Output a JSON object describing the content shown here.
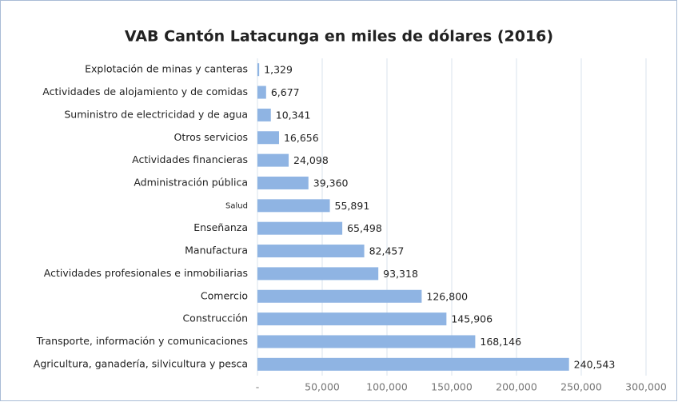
{
  "chart_data": {
    "type": "bar",
    "orientation": "horizontal",
    "title": "VAB Cantón Latacunga en miles de dólares (2016)",
    "categories": [
      "Explotación de minas y canteras",
      "Actividades de alojamiento y de comidas",
      "Suministro de electricidad y de agua",
      "Otros servicios",
      "Actividades financieras",
      "Administración pública",
      "Salud",
      "Enseñanza",
      "Manufactura",
      "Actividades profesionales e inmobiliarias",
      "Comercio",
      "Construcción",
      "Transporte, información y comunicaciones",
      "Agricultura, ganadería, silvicultura y pesca"
    ],
    "values": [
      1329,
      6677,
      10341,
      16656,
      24098,
      39360,
      55891,
      65498,
      82457,
      93318,
      126800,
      145906,
      168146,
      240543
    ],
    "value_labels": [
      "1,329",
      "6,677",
      "10,341",
      "16,656",
      "24,098",
      "39,360",
      "55,891",
      "65,498",
      "82,457",
      "93,318",
      "126,800",
      "145,906",
      "168,146",
      "240,543"
    ],
    "color": "#8fb4e3",
    "xlim": [
      0,
      300000
    ],
    "xticks": [
      {
        "value": 0,
        "label": "-"
      },
      {
        "value": 50000,
        "label": "50,000"
      },
      {
        "value": 100000,
        "label": "100,000"
      },
      {
        "value": 150000,
        "label": "150,000"
      },
      {
        "value": 200000,
        "label": "200,000"
      },
      {
        "value": 250000,
        "label": "250,000"
      },
      {
        "value": 300000,
        "label": "300,000"
      }
    ],
    "grid": true
  }
}
